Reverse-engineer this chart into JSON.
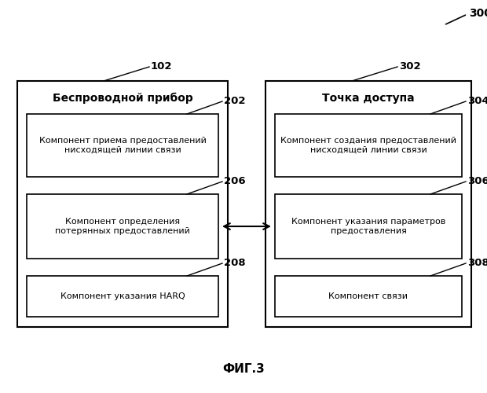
{
  "title": "ФИГ.3",
  "label_300": "300",
  "label_102": "102",
  "label_302": "302",
  "label_202": "202",
  "label_206": "206",
  "label_208": "208",
  "label_304": "304",
  "label_306": "306",
  "label_308": "308",
  "left_box_title": "Беспроводной прибор",
  "right_box_title": "Точка доступа",
  "box202_text": "Компонент приема предоставлений\nнисходящей линии связи",
  "box206_text": "Компонент определения\nпотерянных предоставлений",
  "box208_text": "Компонент указания HARQ",
  "box304_text": "Компонент создания предоставлений\nнисходящей линии связи",
  "box306_text": "Компонент указания параметров\nпредоставления",
  "box308_text": "Компонент связи",
  "bg_color": "#ffffff",
  "box_color": "#ffffff",
  "box_edge_color": "#000000",
  "text_color": "#000000",
  "font_size": 8.0,
  "title_font_size": 11,
  "label_font_size": 9.5
}
